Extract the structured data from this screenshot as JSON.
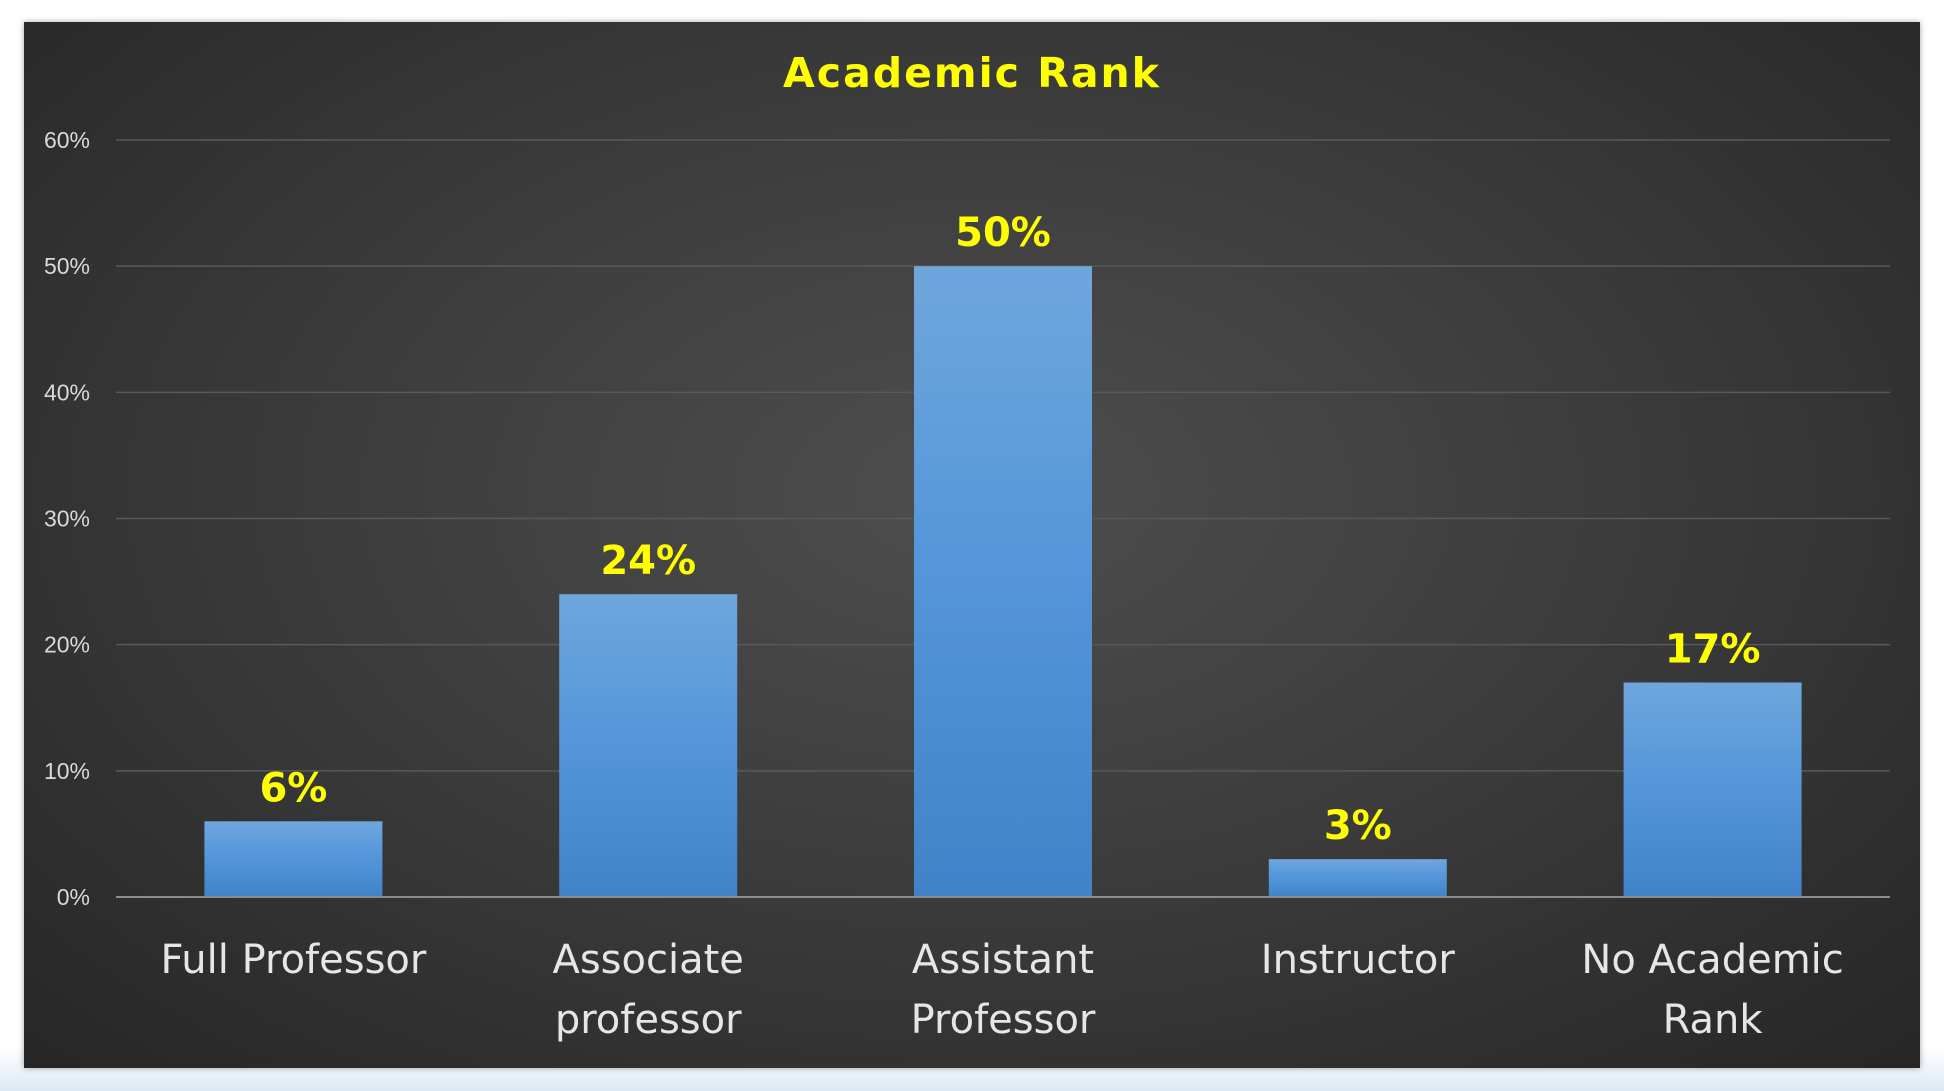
{
  "chart_data": {
    "type": "bar",
    "title": "Academic Rank",
    "xlabel": "",
    "ylabel": "",
    "categories": [
      [
        "Full Professor"
      ],
      [
        "Associate",
        "professor"
      ],
      [
        "Assistant",
        "Professor"
      ],
      [
        "Instructor"
      ],
      [
        "No  Academic",
        "Rank"
      ]
    ],
    "values": [
      6,
      24,
      50,
      3,
      17
    ],
    "data_labels": [
      "6%",
      "24%",
      "50%",
      "3%",
      "17%"
    ],
    "y_ticks": [
      "0%",
      "10%",
      "20%",
      "30%",
      "40%",
      "50%",
      "60%"
    ],
    "ylim": [
      0,
      60
    ],
    "grid": true,
    "legend": "none"
  },
  "colors": {
    "bar_top": "#6fa6dc",
    "bar_bottom": "#4183c8",
    "title": "#ffff00",
    "data_label": "#ffff00",
    "gridline": "#595959",
    "axis": "#8c8c8c"
  }
}
